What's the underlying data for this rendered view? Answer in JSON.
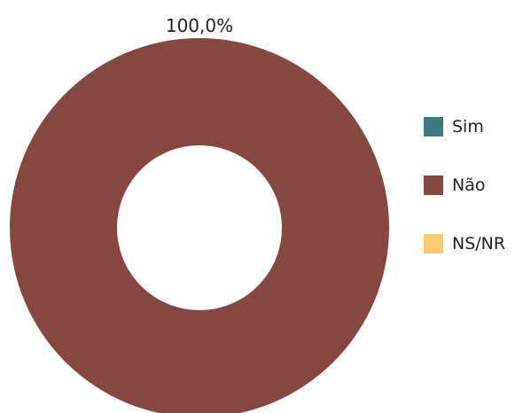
{
  "chart_data": {
    "type": "pie",
    "variant": "donut",
    "categories": [
      "Sim",
      "Não",
      "NS/NR"
    ],
    "values": [
      0,
      100.0,
      0
    ],
    "data_labels": [
      "",
      "100,0%",
      ""
    ],
    "colors": [
      "#3b7a80",
      "#864741",
      "#f7cb6e"
    ],
    "legend_position": "right"
  }
}
